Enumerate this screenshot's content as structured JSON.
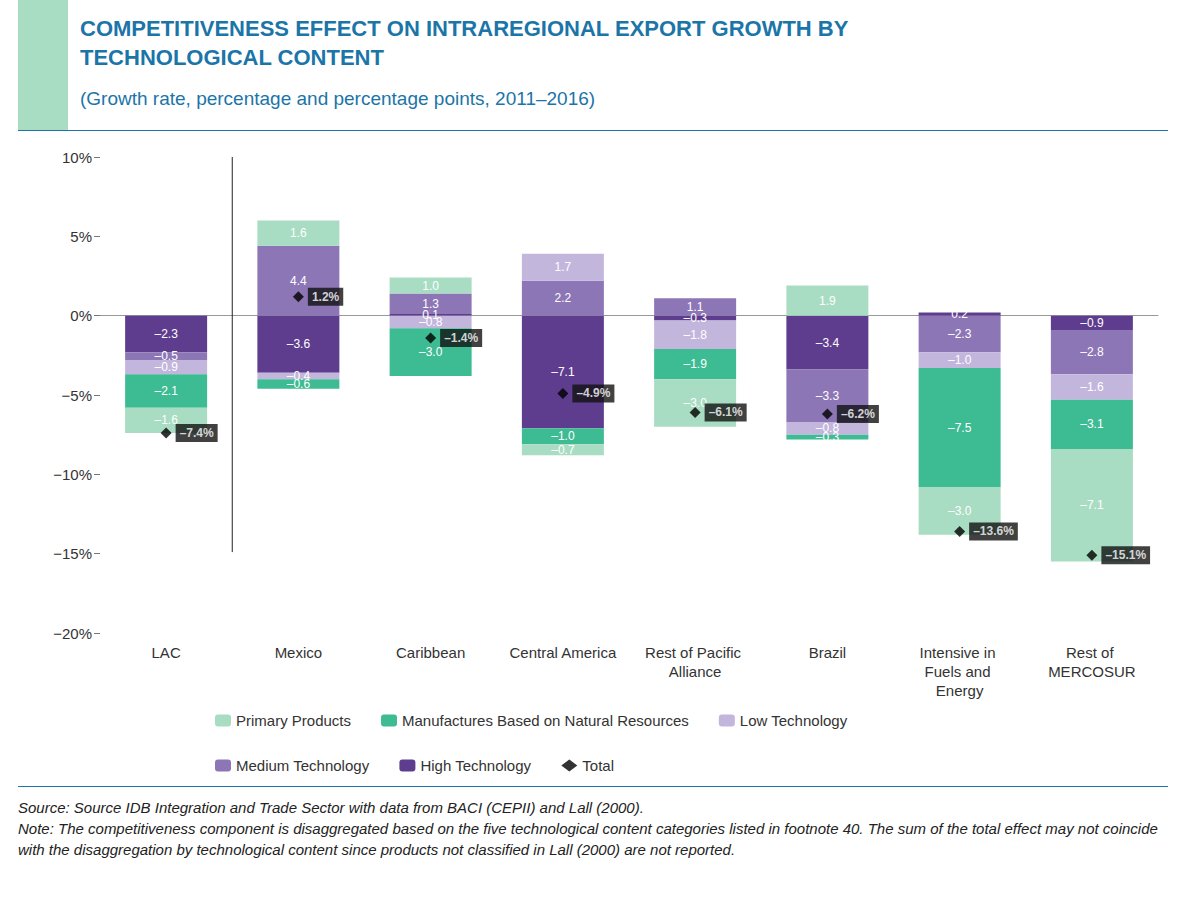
{
  "chart_data": {
    "type": "bar",
    "title": "COMPETITIVENESS EFFECT ON INTRAREGIONAL EXPORT GROWTH BY TECHNOLOGICAL CONTENT",
    "subtitle": "(Growth rate, percentage and percentage points, 2011–2016)",
    "source": "Source: Source IDB Integration and Trade Sector with data from BACI (CEPII) and Lall (2000).",
    "note": "Note: The competitiveness component is disaggregated based on the five technological content categories listed in footnote 40. The sum of the total effect may not coincide with the disaggregation by technological content since products not classified in Lall (2000) are not reported.",
    "categories": [
      "LAC",
      "Mexico",
      "Caribbean",
      "Central America",
      "Rest of Pacific Alliance",
      "Brazil",
      "Intensive in Fuels and Energy",
      "Rest of MERCOSUR"
    ],
    "stacked": true,
    "data_labels": true,
    "grid": false,
    "legend": "bottom",
    "ylim": [
      -20,
      10
    ],
    "yticks": [
      {
        "value": -20,
        "label": "−20%"
      },
      {
        "value": -15,
        "label": "−15%"
      },
      {
        "value": -10,
        "label": "−10%"
      },
      {
        "value": -5,
        "label": "−5%"
      },
      {
        "value": 0,
        "label": "0%"
      },
      {
        "value": 5,
        "label": "5%"
      },
      {
        "value": 10,
        "label": "10%"
      }
    ],
    "series": [
      {
        "name": "Primary Products",
        "color": "#a8dcc3",
        "values": [
          -1.6,
          1.6,
          1.0,
          -0.7,
          -3.0,
          1.9,
          -3.0,
          -7.1
        ],
        "value_labels": [
          "–1.6",
          "1.6",
          "1.0",
          "–0.7",
          "–3.0",
          "1.9",
          "–3.0",
          "–7.1"
        ]
      },
      {
        "name": "Manufactures Based on Natural Resources",
        "color": "#3dbb92",
        "values": [
          -2.1,
          -0.6,
          -3.0,
          -1.0,
          -1.9,
          -0.3,
          -7.5,
          -3.1
        ],
        "value_labels": [
          "–2.1",
          "–0.6",
          "–3.0",
          "–1.0",
          "–1.9",
          "–0.3",
          "–7.5",
          "–3.1"
        ]
      },
      {
        "name": "Low Technology",
        "color": "#c3b6dc",
        "values": [
          -0.9,
          -0.4,
          -0.8,
          1.7,
          -1.8,
          -0.8,
          -1.0,
          -1.6
        ],
        "value_labels": [
          "–0.9",
          "–0.4",
          "–0.8",
          "1.7",
          "–1.8",
          "–0.8",
          "–1.0",
          "–1.6"
        ]
      },
      {
        "name": "Medium Technology",
        "color": "#8d76b6",
        "values": [
          -0.5,
          4.4,
          1.3,
          2.2,
          1.1,
          -3.3,
          -2.3,
          -2.8
        ],
        "value_labels": [
          "–0.5",
          "4.4",
          "1.3",
          "2.2",
          "1.1",
          "–3.3",
          "–2.3",
          "–2.8"
        ]
      },
      {
        "name": "High Technology",
        "color": "#5e3d8f",
        "values": [
          -2.3,
          -3.6,
          0.1,
          -7.1,
          -0.3,
          -3.4,
          0.2,
          -0.9
        ],
        "value_labels": [
          "–2.3",
          "–3.6",
          "0.1",
          "–7.1",
          "–0.3",
          "–3.4",
          "0.2",
          "–0.9"
        ]
      },
      {
        "name": "Total",
        "type": "scatter",
        "marker": "diamond",
        "color": "#000000",
        "values": [
          -7.4,
          1.2,
          -1.4,
          -4.9,
          -6.1,
          -6.2,
          -13.6,
          -15.1
        ],
        "value_labels": [
          "–7.4%",
          "1.2%",
          "–1.4%",
          "–4.9%",
          "–6.1%",
          "–6.2%",
          "–13.6%",
          "–15.1%"
        ]
      }
    ]
  }
}
